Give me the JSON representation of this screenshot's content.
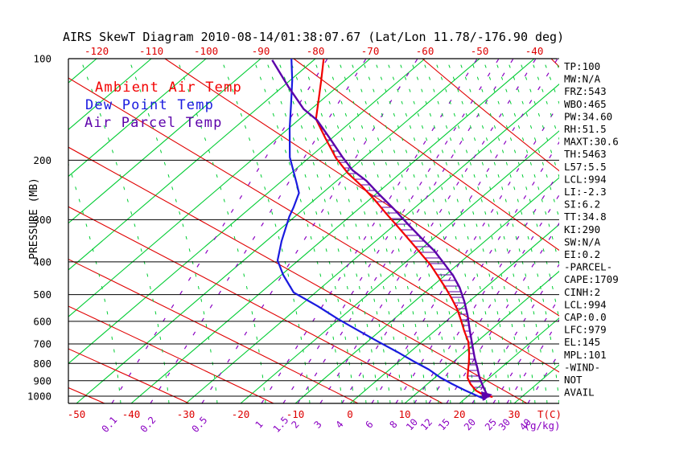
{
  "title": "AIRS SkewT Diagram 2010-08-14/01:38:07.67 (Lat/Lon 11.78/-176.90 deg)",
  "colors": {
    "isotherm_green": "#00cc33",
    "dry_adiabat_red": "#e00000",
    "mixing_purple": "#8a00c2",
    "moist_green": "#00cc33",
    "ambient_red": "#f20000",
    "dew_blue": "#1a1adf",
    "parcel_purple": "#5c00aa",
    "hatch_purple": "#5c00aa",
    "tick_red": "#dd0000",
    "black": "#000000"
  },
  "legend": [
    {
      "label": "Ambient Air Temp",
      "color": "#f20000"
    },
    {
      "label": "Dew Point Temp",
      "color": "#1a1adf"
    },
    {
      "label": "Air Parcel Temp",
      "color": "#5c00aa"
    }
  ],
  "axes": {
    "pressure_label": "PRESSURE (MB)",
    "pressure_ticks": [
      100,
      200,
      300,
      400,
      500,
      600,
      700,
      800,
      900,
      1000
    ],
    "temp_label": "T(C)",
    "temp_ticks_top": [
      -120,
      -110,
      -100,
      -90,
      -80,
      -70,
      -60,
      -50,
      -40
    ],
    "temp_ticks_bottom": [
      -50,
      -40,
      -30,
      -20,
      -10,
      0,
      10,
      20,
      30
    ],
    "mixing_label": "(g/kg)",
    "mixing_ticks": [
      "0.1",
      "0.2",
      "0.5",
      "1",
      "1.5",
      "2",
      "3",
      "4",
      "6",
      "8",
      "10",
      "12",
      "15",
      "20",
      "25",
      "30",
      "40"
    ]
  },
  "stats": [
    "TP:100",
    "MW:N/A",
    "FRZ:543",
    "WBO:465",
    "PW:34.60",
    "RH:51.5",
    "MAXT:30.6",
    "TH:5463",
    "L57:5.5",
    "LCL:994",
    "LI:-2.3",
    "SI:6.2",
    "TT:34.8",
    "KI:290",
    "SW:N/A",
    "EI:0.2",
    "-PARCEL-",
    "CAPE:1709",
    "CINH:2",
    "LCL:994",
    "CAP:0.0",
    "LFC:979",
    "EL:145",
    "MPL:101",
    "-WIND-",
    "NOT",
    "AVAIL"
  ],
  "chart_data": {
    "type": "line",
    "variant": "skewt_log_p",
    "title": "AIRS SkewT Diagram 2010-08-14/01:38:07.67 (Lat/Lon 11.78/-176.90 deg)",
    "x_axis": {
      "label": "T(C)",
      "bottom_range": [
        -50,
        30
      ],
      "top_range": [
        -120,
        -40
      ],
      "units": "C"
    },
    "y_axis": {
      "label": "PRESSURE (MB)",
      "scale": "log",
      "range": [
        100,
        1050
      ],
      "units": "mb"
    },
    "grid": {
      "isotherms_every_C": 10,
      "mixing_ratio_g_kg": [
        0.1,
        0.2,
        0.5,
        1,
        1.5,
        2,
        3,
        4,
        6,
        8,
        10,
        12,
        15,
        20,
        25,
        30,
        40
      ]
    },
    "legend_position": "top-left-inside",
    "hatched_region": "CAPE area between ambient and parcel temperature curves",
    "series": [
      {
        "name": "Ambient Air Temp",
        "color": "#f20000",
        "points_p_T": [
          [
            100,
            -78.5
          ],
          [
            116,
            -74.3
          ],
          [
            133,
            -70.5
          ],
          [
            151,
            -67.0
          ],
          [
            172,
            -61.2
          ],
          [
            197,
            -55.0
          ],
          [
            218,
            -49.7
          ],
          [
            239,
            -44.2
          ],
          [
            261,
            -39.2
          ],
          [
            287,
            -34.1
          ],
          [
            316,
            -28.8
          ],
          [
            347,
            -23.7
          ],
          [
            377,
            -19.2
          ],
          [
            409,
            -14.8
          ],
          [
            444,
            -10.8
          ],
          [
            482,
            -6.8
          ],
          [
            515,
            -3.7
          ],
          [
            553,
            -0.5
          ],
          [
            594,
            2.4
          ],
          [
            641,
            5.4
          ],
          [
            689,
            8.4
          ],
          [
            740,
            10.8
          ],
          [
            790,
            12.8
          ],
          [
            835,
            14.4
          ],
          [
            882,
            16.0
          ],
          [
            921,
            17.9
          ],
          [
            963,
            20.3
          ],
          [
            989,
            22.4
          ],
          [
            1006,
            24.7
          ]
        ]
      },
      {
        "name": "Dew Point Temp",
        "color": "#1a1adf",
        "points_p_T": [
          [
            100,
            -84.4
          ],
          [
            116,
            -79.6
          ],
          [
            137,
            -74.6
          ],
          [
            161,
            -69.8
          ],
          [
            196,
            -63.6
          ],
          [
            234,
            -56.8
          ],
          [
            250,
            -54.3
          ],
          [
            276,
            -52.2
          ],
          [
            294,
            -51.0
          ],
          [
            347,
            -47.2
          ],
          [
            396,
            -43.8
          ],
          [
            437,
            -39.7
          ],
          [
            493,
            -34.0
          ],
          [
            541,
            -26.7
          ],
          [
            591,
            -20.2
          ],
          [
            641,
            -13.8
          ],
          [
            689,
            -8.1
          ],
          [
            740,
            -2.3
          ],
          [
            786,
            2.4
          ],
          [
            834,
            7.2
          ],
          [
            881,
            11.0
          ],
          [
            921,
            14.6
          ],
          [
            962,
            18.3
          ],
          [
            995,
            21.4
          ],
          [
            1022,
            23.9
          ]
        ]
      },
      {
        "name": "Air Parcel Temp",
        "color": "#5c00aa",
        "points_p_T": [
          [
            101,
            -87.6
          ],
          [
            121,
            -79.0
          ],
          [
            141,
            -71.4
          ],
          [
            152,
            -66.6
          ],
          [
            172,
            -60.4
          ],
          [
            195,
            -54.2
          ],
          [
            214,
            -49.4
          ],
          [
            230,
            -44.6
          ],
          [
            250,
            -39.9
          ],
          [
            279,
            -33.5
          ],
          [
            311,
            -27.4
          ],
          [
            343,
            -21.8
          ],
          [
            371,
            -17.2
          ],
          [
            403,
            -12.9
          ],
          [
            439,
            -8.5
          ],
          [
            477,
            -4.7
          ],
          [
            524,
            -0.9
          ],
          [
            575,
            2.6
          ],
          [
            635,
            6.1
          ],
          [
            700,
            9.6
          ],
          [
            769,
            13.0
          ],
          [
            825,
            15.7
          ],
          [
            882,
            18.2
          ],
          [
            936,
            20.7
          ],
          [
            984,
            22.9
          ],
          [
            1006,
            24.1
          ]
        ]
      }
    ]
  }
}
